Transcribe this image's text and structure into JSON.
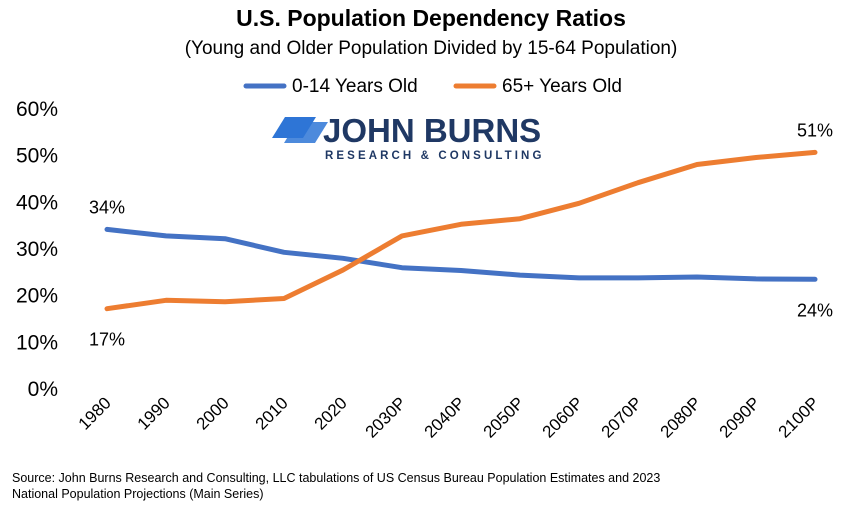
{
  "chart_data": {
    "type": "line",
    "title": "U.S. Population Dependency Ratios",
    "subtitle": "(Young and Older Population Divided by 15-64 Population)",
    "categories": [
      "1980",
      "1990",
      "2000",
      "2010",
      "2020",
      "2030P",
      "2040P",
      "2050P",
      "2060P",
      "2070P",
      "2080P",
      "2090P",
      "2100P"
    ],
    "series": [
      {
        "name": "0-14 Years Old",
        "color": "#4472C4",
        "values": [
          34.2,
          32.8,
          32.2,
          29.3,
          28.0,
          26.0,
          25.4,
          24.4,
          23.8,
          23.8,
          24.0,
          23.6,
          23.5
        ]
      },
      {
        "name": "65+ Years Old",
        "color": "#ED7D31",
        "values": [
          17.2,
          19.0,
          18.7,
          19.4,
          25.5,
          32.8,
          35.3,
          36.5,
          39.8,
          44.2,
          48.1,
          49.6,
          50.7
        ]
      }
    ],
    "ylim": [
      0,
      60
    ],
    "yticks": [
      0,
      10,
      20,
      30,
      40,
      50,
      60
    ],
    "ytick_labels": [
      "0%",
      "10%",
      "20%",
      "30%",
      "40%",
      "50%",
      "60%"
    ],
    "grid": false,
    "legend_position": "top-center",
    "annotations": [
      {
        "series": 0,
        "index": 0,
        "text": "34%",
        "placement": "above"
      },
      {
        "series": 1,
        "index": 0,
        "text": "17%",
        "placement": "below"
      },
      {
        "series": 1,
        "index": 12,
        "text": "51%",
        "placement": "above"
      },
      {
        "series": 0,
        "index": 12,
        "text": "24%",
        "placement": "below"
      }
    ]
  },
  "logo": {
    "name": "JOHN BURNS",
    "tagline": "RESEARCH & CONSULTING",
    "color": "#1F3864",
    "mark_color": "#2E75D6"
  },
  "source": {
    "line1": "Source: John Burns Research and Consulting, LLC tabulations of US Census Bureau Population Estimates and 2023",
    "line2": "National Population Projections (Main Series)"
  }
}
